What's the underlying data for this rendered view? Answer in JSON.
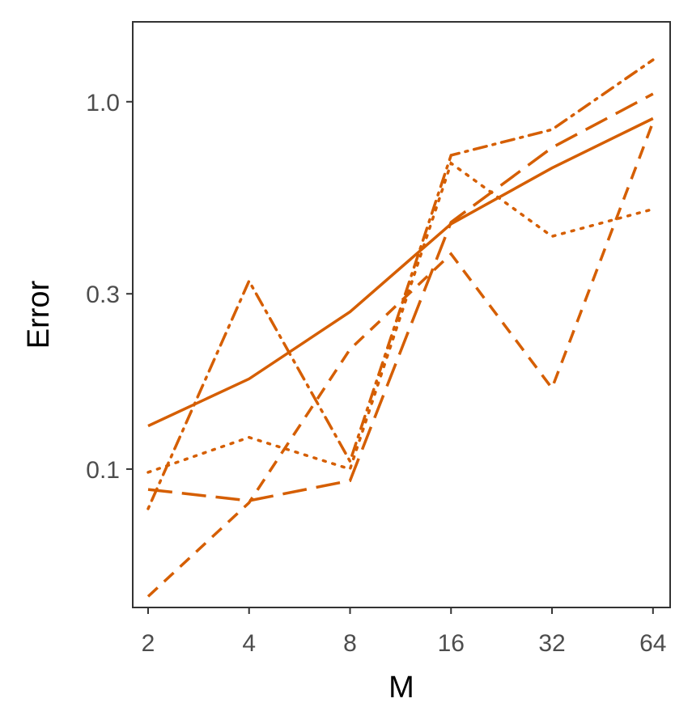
{
  "chart_data": {
    "type": "line",
    "title": "",
    "xlabel": "M",
    "ylabel": "Error",
    "x_scale": "log2",
    "y_scale": "log10",
    "x": [
      2,
      4,
      8,
      16,
      32,
      64
    ],
    "x_tick_labels": [
      "2",
      "4",
      "8",
      "16",
      "32",
      "64"
    ],
    "y_ticks": [
      0.1,
      0.3,
      1.0
    ],
    "y_tick_labels": [
      "0.1",
      "0.3",
      "1.0"
    ],
    "xlim": [
      1.8,
      72
    ],
    "ylim": [
      0.042,
      1.65
    ],
    "grid": false,
    "legend": "none",
    "line_color": "#d55e00",
    "series": [
      {
        "dash": "solid",
        "values": [
          0.131,
          0.176,
          0.268,
          0.465,
          0.66,
          0.9
        ]
      },
      {
        "dash": "longdash",
        "values": [
          0.088,
          0.082,
          0.093,
          0.47,
          0.75,
          1.05
        ]
      },
      {
        "dash": "dashed",
        "values": [
          0.045,
          0.081,
          0.212,
          0.385,
          0.166,
          0.88
        ]
      },
      {
        "dash": "dotted",
        "values": [
          0.098,
          0.122,
          0.1,
          0.68,
          0.43,
          0.51
        ]
      },
      {
        "dash": "dotdash",
        "values": [
          0.078,
          0.325,
          0.105,
          0.715,
          0.84,
          1.3
        ]
      }
    ]
  }
}
